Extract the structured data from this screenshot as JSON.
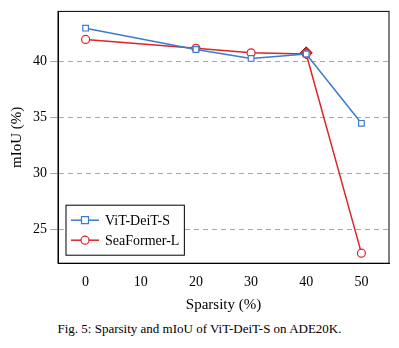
{
  "chart_data": {
    "type": "line",
    "caption": "Fig. 5: Sparsity and mIoU of ViT-DeiT-S on ADE20K.",
    "x_label": "Sparsity (%)",
    "y_label": "mIoU (%)",
    "x": [
      0,
      20,
      30,
      40,
      50
    ],
    "series": [
      {
        "name": "ViT-DeiT-S",
        "color": "#3b7bd0",
        "marker": "square",
        "values": [
          43.0,
          41.1,
          40.3,
          40.7,
          34.5
        ]
      },
      {
        "name": "SeaFormer-L",
        "color": "#d9262b",
        "marker": "circle",
        "values": [
          42.0,
          41.2,
          40.8,
          40.7,
          22.9
        ]
      }
    ],
    "highlight": {
      "x": 40,
      "y": 40.8,
      "marker": "diamond",
      "color": "#d9262b"
    },
    "xlim": [
      -5,
      55
    ],
    "xticks": [
      0,
      10,
      20,
      30,
      40,
      50
    ],
    "ylim": [
      22,
      44.5
    ],
    "yticks": [
      25,
      30,
      35,
      40
    ],
    "grid": "y",
    "legend": "lower left"
  }
}
